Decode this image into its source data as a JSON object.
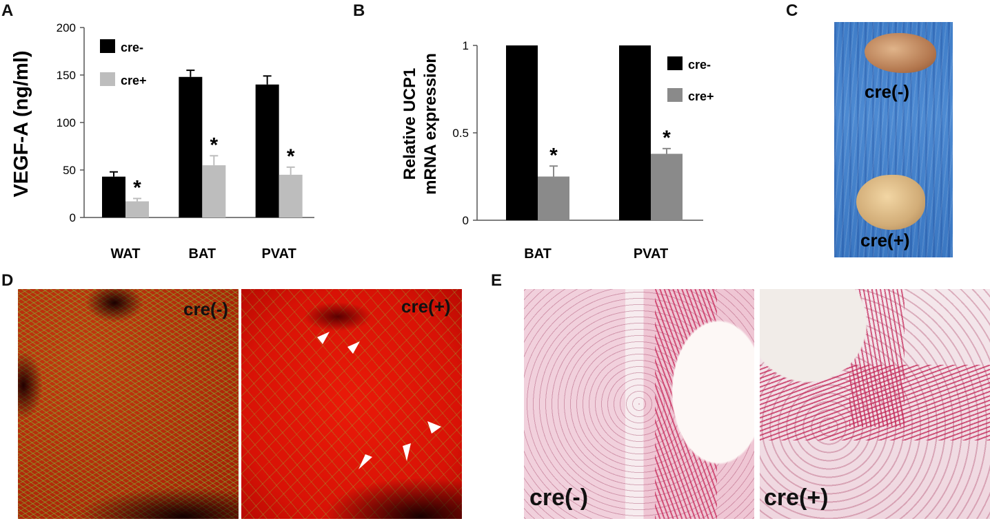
{
  "panels": {
    "a": "A",
    "b": "B",
    "c": "C",
    "d": "D",
    "e": "E"
  },
  "chart_data": [
    {
      "type": "bar",
      "panel": "A",
      "ylabel": "VEGF-A (ng/ml)",
      "xlabel": "",
      "ylim": [
        0,
        200
      ],
      "yticks": [
        0,
        50,
        100,
        150,
        200
      ],
      "categories": [
        "WAT",
        "BAT",
        "PVAT"
      ],
      "series": [
        {
          "name": "cre-",
          "color": "#000000",
          "values": [
            43,
            148,
            140
          ],
          "errors": [
            5,
            7,
            9
          ]
        },
        {
          "name": "cre+",
          "color": "#bdbdbd",
          "values": [
            17,
            55,
            45
          ],
          "errors": [
            3,
            10,
            8
          ],
          "annotations": [
            "*",
            "*",
            "*"
          ]
        }
      ],
      "legend": "top-left",
      "grid": false
    },
    {
      "type": "bar",
      "panel": "B",
      "ylabel": "Relative UCP1 mRNA expression",
      "ylabel_lines": [
        "Relative UCP1",
        "mRNA expression"
      ],
      "xlabel": "",
      "ylim": [
        0,
        1
      ],
      "yticks": [
        0,
        0.5,
        1
      ],
      "yticklabels": [
        "0",
        "0.5",
        "1"
      ],
      "categories": [
        "BAT",
        "PVAT"
      ],
      "series": [
        {
          "name": "cre-",
          "color": "#000000",
          "values": [
            1,
            1
          ],
          "errors": [
            0,
            0
          ]
        },
        {
          "name": "cre+",
          "color": "#8a8a8a",
          "values": [
            0.25,
            0.38
          ],
          "errors": [
            0.06,
            0.03
          ],
          "annotations": [
            "*",
            "*"
          ]
        }
      ],
      "legend": "top-right",
      "grid": false
    }
  ],
  "images": {
    "c": {
      "top_label": "cre(-)",
      "bottom_label": "cre(+)"
    },
    "d": {
      "left_label": "cre(-)",
      "right_label": "cre(+)"
    },
    "e": {
      "left_label": "cre(-)",
      "right_label": "cre(+)"
    }
  }
}
